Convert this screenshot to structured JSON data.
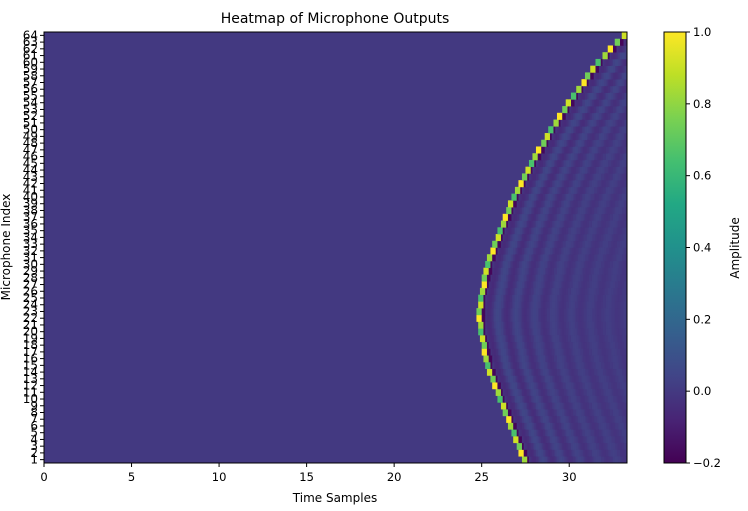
{
  "chart_data": {
    "type": "heatmap",
    "title": "Heatmap of Microphone Outputs",
    "xlabel": "Time Samples",
    "ylabel": "Microphone Index",
    "colorbar_label": "Amplitude",
    "colormap": "viridis",
    "xlim": [
      0,
      33.3
    ],
    "ylim": [
      0.5,
      64.5
    ],
    "xticks": [
      0,
      5,
      10,
      15,
      20,
      25,
      30
    ],
    "yticks": [
      1,
      2,
      3,
      4,
      5,
      6,
      7,
      8,
      9,
      10,
      11,
      12,
      13,
      14,
      15,
      16,
      17,
      18,
      19,
      20,
      21,
      22,
      23,
      24,
      25,
      26,
      27,
      28,
      29,
      30,
      31,
      32,
      33,
      34,
      35,
      36,
      37,
      38,
      39,
      40,
      41,
      42,
      43,
      44,
      45,
      46,
      47,
      48,
      49,
      50,
      51,
      52,
      53,
      54,
      55,
      56,
      57,
      58,
      59,
      60,
      61,
      62,
      63,
      64
    ],
    "vmin": -0.2,
    "vmax": 1.0,
    "colorbar_ticks": [
      "1.0",
      "0.8",
      "0.6",
      "0.4",
      "0.2",
      "0.0",
      "−0.2"
    ],
    "background_value": 0.0,
    "wavefront": {
      "description_values": "arrival time per microphone (time samples)",
      "microphones": [
        1,
        5,
        10,
        15,
        20,
        22.5,
        25,
        30,
        35,
        40,
        45,
        50,
        55,
        60,
        64
      ],
      "arrival_time": [
        27.4,
        26.8,
        26.0,
        25.3,
        24.9,
        24.8,
        24.9,
        25.3,
        26.0,
        26.8,
        27.8,
        28.9,
        30.2,
        31.6,
        33.1
      ],
      "peak_amplitude": [
        0.7,
        0.8,
        0.9,
        1.0
      ]
    }
  }
}
